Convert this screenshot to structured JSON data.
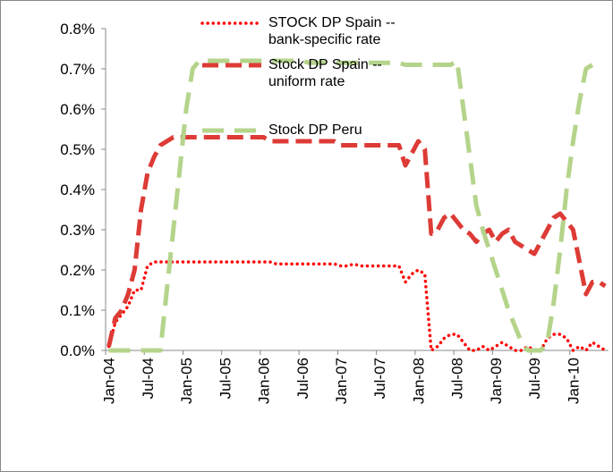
{
  "chart_data": {
    "type": "line",
    "categories": [
      "Jan-04",
      null,
      null,
      null,
      null,
      null,
      "Jul-04",
      null,
      null,
      null,
      null,
      null,
      "Jan-05",
      null,
      null,
      null,
      null,
      null,
      "Jul-05",
      null,
      null,
      null,
      null,
      null,
      "Jan-06",
      null,
      null,
      null,
      null,
      null,
      "Jul-06",
      null,
      null,
      null,
      null,
      null,
      "Jan-07",
      null,
      null,
      null,
      null,
      null,
      "Jul-07",
      null,
      null,
      null,
      null,
      null,
      "Jan-08",
      null,
      null,
      null,
      null,
      null,
      "Jul-08",
      null,
      null,
      null,
      null,
      null,
      "Jan-09",
      null,
      null,
      null,
      null,
      null,
      "Jul-09",
      null,
      null,
      null,
      null,
      null,
      "Jan-10",
      null,
      null,
      null,
      null,
      null
    ],
    "series": [
      {
        "name": "STOCK DP Spain -- bank-specific rate",
        "color": "#ff0000",
        "style": "dotted",
        "values": [
          0.01,
          0.07,
          0.09,
          0.11,
          0.15,
          0.15,
          0.21,
          0.22,
          0.22,
          0.22,
          0.22,
          0.22,
          0.22,
          0.22,
          0.22,
          0.22,
          0.22,
          0.22,
          0.22,
          0.22,
          0.22,
          0.22,
          0.22,
          0.22,
          0.22,
          0.22,
          0.215,
          0.215,
          0.215,
          0.215,
          0.215,
          0.215,
          0.215,
          0.215,
          0.215,
          0.215,
          0.21,
          0.21,
          0.215,
          0.21,
          0.21,
          0.21,
          0.21,
          0.21,
          0.21,
          0.21,
          0.17,
          0.19,
          0.2,
          0.19,
          0.0,
          0.01,
          0.03,
          0.04,
          0.04,
          0.02,
          0.0,
          0.0,
          0.01,
          0.0,
          0.01,
          0.02,
          0.01,
          0.0,
          0.0,
          0.01,
          0.0,
          0.0,
          0.03,
          0.04,
          0.04,
          0.03,
          0.0,
          0.01,
          0.0,
          0.02,
          0.01,
          0.0
        ]
      },
      {
        "name": "Stock DP Spain -- uniform rate",
        "color": "#dd3b36",
        "style": "dashed",
        "values": [
          0.01,
          0.08,
          0.1,
          0.14,
          0.2,
          0.35,
          0.44,
          0.48,
          0.51,
          0.52,
          0.53,
          0.53,
          0.53,
          0.53,
          0.53,
          0.53,
          0.53,
          0.53,
          0.53,
          0.53,
          0.53,
          0.53,
          0.53,
          0.53,
          0.53,
          0.52,
          0.52,
          0.52,
          0.52,
          0.52,
          0.52,
          0.52,
          0.52,
          0.52,
          0.52,
          0.52,
          0.51,
          0.51,
          0.51,
          0.51,
          0.51,
          0.51,
          0.51,
          0.51,
          0.51,
          0.51,
          0.46,
          0.49,
          0.52,
          0.5,
          0.29,
          0.3,
          0.33,
          0.34,
          0.32,
          0.3,
          0.29,
          0.27,
          0.29,
          0.3,
          0.27,
          0.29,
          0.3,
          0.27,
          0.26,
          0.25,
          0.24,
          0.27,
          0.3,
          0.33,
          0.34,
          0.32,
          0.3,
          0.22,
          0.14,
          0.17,
          0.17,
          0.16
        ]
      },
      {
        "name": "Stock DP Peru",
        "color": "#b5d48b",
        "style": "longdash",
        "values": [
          0,
          0,
          0,
          0,
          0,
          0,
          0,
          0,
          0,
          0.15,
          0.3,
          0.45,
          0.6,
          0.7,
          0.72,
          0.72,
          0.72,
          0.72,
          0.72,
          0.72,
          0.72,
          0.72,
          0.72,
          0.72,
          0.72,
          0.72,
          0.72,
          0.72,
          0.72,
          0.72,
          0.72,
          0.715,
          0.715,
          0.715,
          0.715,
          0.715,
          0.715,
          0.715,
          0.715,
          0.715,
          0.715,
          0.715,
          0.715,
          0.715,
          0.715,
          0.715,
          0.71,
          0.71,
          0.71,
          0.71,
          0.71,
          0.71,
          0.71,
          0.71,
          0.72,
          0.6,
          0.48,
          0.36,
          0.3,
          0.25,
          0.2,
          0.15,
          0.1,
          0.06,
          0.02,
          0,
          0,
          0,
          0.02,
          0.12,
          0.25,
          0.4,
          0.52,
          0.62,
          0.7,
          0.71,
          null,
          null
        ]
      }
    ],
    "ylim": [
      0,
      0.8
    ],
    "yticks": [
      {
        "value": 0,
        "label": "0.0%"
      },
      {
        "value": 0.1,
        "label": "0.1%"
      },
      {
        "value": 0.2,
        "label": "0.2%"
      },
      {
        "value": 0.3,
        "label": "0.3%"
      },
      {
        "value": 0.4,
        "label": "0.4%"
      },
      {
        "value": 0.5,
        "label": "0.5%"
      },
      {
        "value": 0.6,
        "label": "0.6%"
      },
      {
        "value": 0.7,
        "label": "0.7%"
      },
      {
        "value": 0.8,
        "label": "0.8%"
      }
    ],
    "grid": false,
    "legend": "top"
  }
}
